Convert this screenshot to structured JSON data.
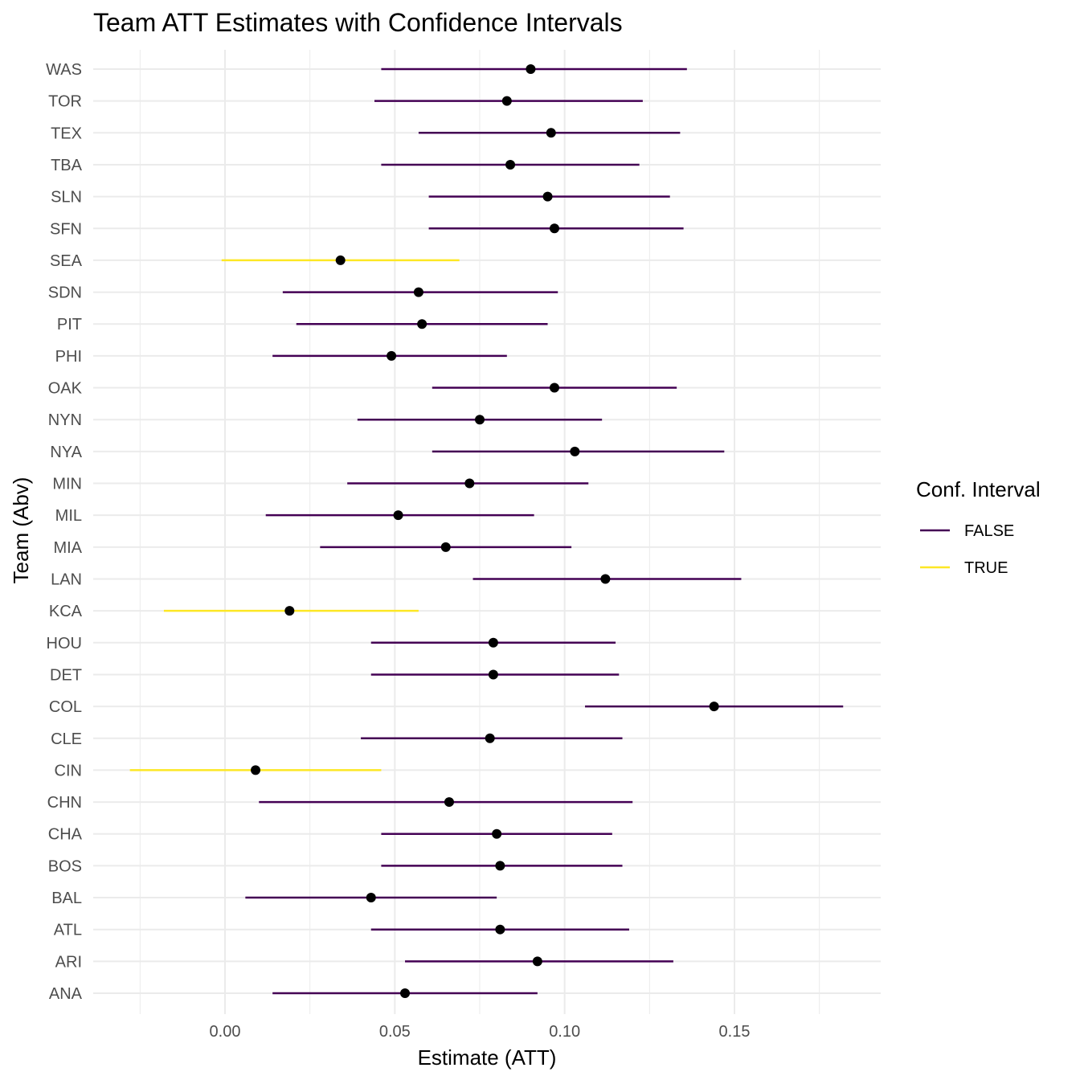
{
  "chart_data": {
    "type": "scatter",
    "title": "Team ATT Estimates with Confidence Intervals",
    "xlabel": "Estimate (ATT)",
    "ylabel": "Team (Abv)",
    "xlim": [
      -0.025,
      0.192
    ],
    "x_ticks": [
      0.0,
      0.05,
      0.1,
      0.15
    ],
    "x_tick_labels": [
      "0.00",
      "0.05",
      "0.10",
      "0.15"
    ],
    "grid": true,
    "legend": {
      "title": "Conf. Interval",
      "placement": "right",
      "entries": [
        {
          "label": "FALSE",
          "color": "#440154"
        },
        {
          "label": "TRUE",
          "color": "#FDE725"
        }
      ]
    },
    "point_color": "#000000",
    "teams": [
      {
        "team": "ANA",
        "estimate": 0.053,
        "lower": 0.014,
        "upper": 0.092,
        "ci": "FALSE"
      },
      {
        "team": "ARI",
        "estimate": 0.092,
        "lower": 0.053,
        "upper": 0.132,
        "ci": "FALSE"
      },
      {
        "team": "ATL",
        "estimate": 0.081,
        "lower": 0.043,
        "upper": 0.119,
        "ci": "FALSE"
      },
      {
        "team": "BAL",
        "estimate": 0.043,
        "lower": 0.006,
        "upper": 0.08,
        "ci": "FALSE"
      },
      {
        "team": "BOS",
        "estimate": 0.081,
        "lower": 0.046,
        "upper": 0.117,
        "ci": "FALSE"
      },
      {
        "team": "CHA",
        "estimate": 0.08,
        "lower": 0.046,
        "upper": 0.114,
        "ci": "FALSE"
      },
      {
        "team": "CHN",
        "estimate": 0.066,
        "lower": 0.01,
        "upper": 0.12,
        "ci": "FALSE"
      },
      {
        "team": "CIN",
        "estimate": 0.009,
        "lower": -0.028,
        "upper": 0.046,
        "ci": "TRUE"
      },
      {
        "team": "CLE",
        "estimate": 0.078,
        "lower": 0.04,
        "upper": 0.117,
        "ci": "FALSE"
      },
      {
        "team": "COL",
        "estimate": 0.144,
        "lower": 0.106,
        "upper": 0.182,
        "ci": "FALSE"
      },
      {
        "team": "DET",
        "estimate": 0.079,
        "lower": 0.043,
        "upper": 0.116,
        "ci": "FALSE"
      },
      {
        "team": "HOU",
        "estimate": 0.079,
        "lower": 0.043,
        "upper": 0.115,
        "ci": "FALSE"
      },
      {
        "team": "KCA",
        "estimate": 0.019,
        "lower": -0.018,
        "upper": 0.057,
        "ci": "TRUE"
      },
      {
        "team": "LAN",
        "estimate": 0.112,
        "lower": 0.073,
        "upper": 0.152,
        "ci": "FALSE"
      },
      {
        "team": "MIA",
        "estimate": 0.065,
        "lower": 0.028,
        "upper": 0.102,
        "ci": "FALSE"
      },
      {
        "team": "MIL",
        "estimate": 0.051,
        "lower": 0.012,
        "upper": 0.091,
        "ci": "FALSE"
      },
      {
        "team": "MIN",
        "estimate": 0.072,
        "lower": 0.036,
        "upper": 0.107,
        "ci": "FALSE"
      },
      {
        "team": "NYA",
        "estimate": 0.103,
        "lower": 0.061,
        "upper": 0.147,
        "ci": "FALSE"
      },
      {
        "team": "NYN",
        "estimate": 0.075,
        "lower": 0.039,
        "upper": 0.111,
        "ci": "FALSE"
      },
      {
        "team": "OAK",
        "estimate": 0.097,
        "lower": 0.061,
        "upper": 0.133,
        "ci": "FALSE"
      },
      {
        "team": "PHI",
        "estimate": 0.049,
        "lower": 0.014,
        "upper": 0.083,
        "ci": "FALSE"
      },
      {
        "team": "PIT",
        "estimate": 0.058,
        "lower": 0.021,
        "upper": 0.095,
        "ci": "FALSE"
      },
      {
        "team": "SDN",
        "estimate": 0.057,
        "lower": 0.017,
        "upper": 0.098,
        "ci": "FALSE"
      },
      {
        "team": "SEA",
        "estimate": 0.034,
        "lower": -0.001,
        "upper": 0.069,
        "ci": "TRUE"
      },
      {
        "team": "SFN",
        "estimate": 0.097,
        "lower": 0.06,
        "upper": 0.135,
        "ci": "FALSE"
      },
      {
        "team": "SLN",
        "estimate": 0.095,
        "lower": 0.06,
        "upper": 0.131,
        "ci": "FALSE"
      },
      {
        "team": "TBA",
        "estimate": 0.084,
        "lower": 0.046,
        "upper": 0.122,
        "ci": "FALSE"
      },
      {
        "team": "TEX",
        "estimate": 0.096,
        "lower": 0.057,
        "upper": 0.134,
        "ci": "FALSE"
      },
      {
        "team": "TOR",
        "estimate": 0.083,
        "lower": 0.044,
        "upper": 0.123,
        "ci": "FALSE"
      },
      {
        "team": "WAS",
        "estimate": 0.09,
        "lower": 0.046,
        "upper": 0.136,
        "ci": "FALSE"
      }
    ]
  }
}
